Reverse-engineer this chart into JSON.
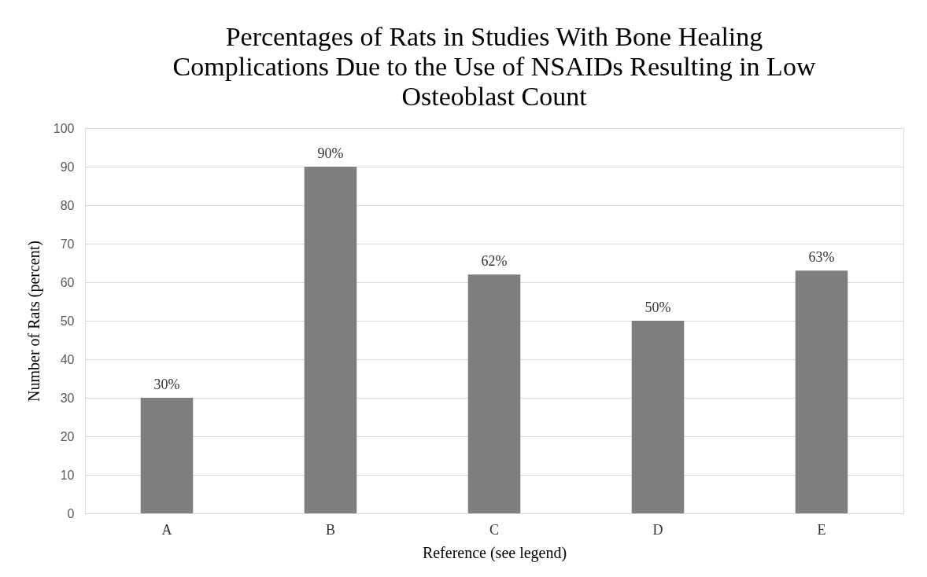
{
  "chart_data": {
    "type": "bar",
    "title": [
      "Percentages of Rats in Studies With Bone Healing",
      "Complications Due to the Use of NSAIDs Resulting in Low",
      "Osteoblast Count"
    ],
    "xlabel": "Reference (see legend)",
    "ylabel": "Number of Rats (percent)",
    "categories": [
      "A",
      "B",
      "C",
      "D",
      "E"
    ],
    "values": [
      30,
      90,
      62,
      50,
      63
    ],
    "value_labels": [
      "30%",
      "90%",
      "62%",
      "50%",
      "63%"
    ],
    "color": "#7f7f7f",
    "ylim": [
      0,
      100
    ],
    "yticks": [
      0,
      10,
      20,
      30,
      40,
      50,
      60,
      70,
      80,
      90,
      100
    ],
    "grid": "y"
  }
}
